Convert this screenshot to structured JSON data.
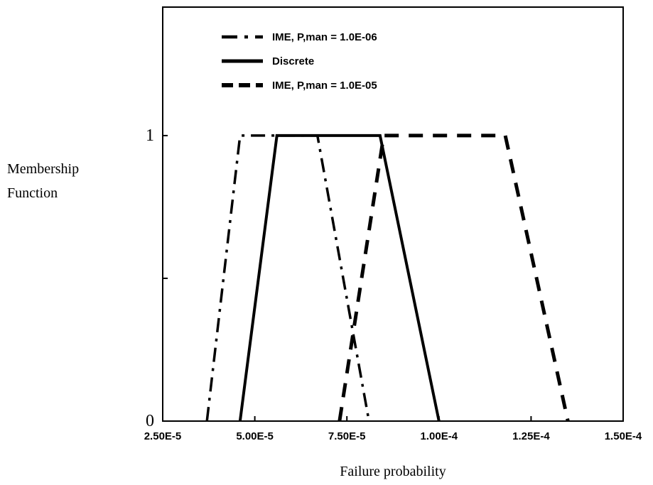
{
  "chart_data": {
    "type": "line",
    "xlabel": "Failure probability",
    "ylabel_lines": [
      "Membership",
      "Function"
    ],
    "xlim": [
      2.5e-05,
      0.00015
    ],
    "ylim": [
      0,
      1.45
    ],
    "x_ticks": [
      2.5e-05,
      5e-05,
      7.5e-05,
      0.0001,
      0.000125,
      0.00015
    ],
    "x_tick_labels": [
      "2.50E-5",
      "5.00E-5",
      "7.50E-5",
      "1.00E-4",
      "1.25E-4",
      "1.50E-4"
    ],
    "y_ticks": [
      0,
      0.5,
      1
    ],
    "y_tick_labels": [
      "0",
      "",
      "1"
    ],
    "grid": false,
    "legend_position": "top-left",
    "series": [
      {
        "name": "IME, P,man = 1.0E-06",
        "style": "dashdot",
        "color": "#000000",
        "x": [
          3.7e-05,
          4.6e-05,
          6.7e-05,
          8.1e-05
        ],
        "y": [
          0,
          1,
          1,
          0
        ]
      },
      {
        "name": "Discrete",
        "style": "solid",
        "color": "#000000",
        "x": [
          4.6e-05,
          5.6e-05,
          8.4e-05,
          0.0001
        ],
        "y": [
          0,
          1,
          1,
          0
        ]
      },
      {
        "name": "IME, P,man = 1.0E-05",
        "style": "dashed",
        "color": "#000000",
        "x": [
          7.3e-05,
          8.5e-05,
          0.000118,
          0.000135
        ],
        "y": [
          0,
          1,
          1,
          0
        ]
      }
    ]
  }
}
